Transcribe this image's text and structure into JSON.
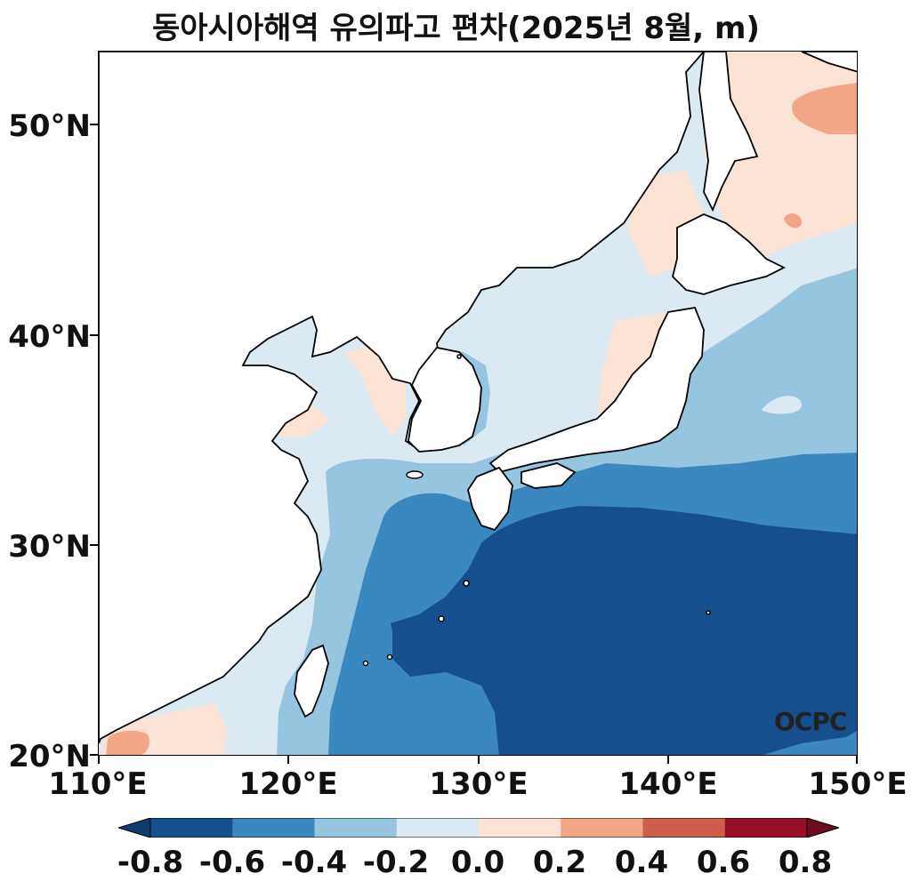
{
  "title": "동아시아해역 유의파고 편차(2025년 8월, m)",
  "lat_labels": [
    "50°N",
    "40°N",
    "30°N",
    "20°N"
  ],
  "lon_labels": [
    "110°E",
    "120°E",
    "130°E",
    "140°E",
    "150°E"
  ],
  "colorbar": {
    "ticks": [
      "-0.8",
      "-0.6",
      "-0.4",
      "-0.2",
      "0.0",
      "0.2",
      "0.4",
      "0.6",
      "0.8"
    ],
    "colors": [
      "#164f8d",
      "#3b87bf",
      "#96c5e0",
      "#dbe9f2",
      "#fbe3d6",
      "#f3a686",
      "#d05d4b",
      "#960f28"
    ]
  },
  "watermark": "OCPC",
  "map_extent": {
    "lon": [
      110,
      150
    ],
    "lat": [
      20,
      53.5
    ]
  }
}
